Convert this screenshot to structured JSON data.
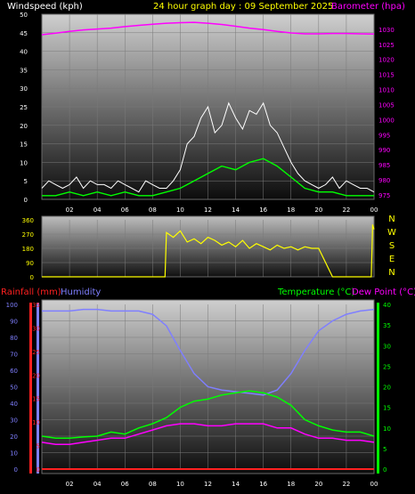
{
  "header": {
    "left": "Windspeed (kph)",
    "center": "24 hour graph day : 09 September 2025",
    "right": "Barometer (hpa)"
  },
  "colors": {
    "background": "#000000",
    "windspeed_label": "#ffffff",
    "title": "#ffff00",
    "barometer": "#ff00ff",
    "wind_gust": "#ffffff",
    "wind_avg": "#00ff00",
    "direction": "#ffff00",
    "rainfall": "#ff2020",
    "humidity": "#7f7fff",
    "temperature": "#00ff00",
    "dewpoint": "#ff00ff"
  },
  "chart_data": [
    {
      "type": "line",
      "name": "wind-barometer",
      "xlabel": "",
      "ylabel": "Windspeed (kph)",
      "ylabel_right": "Barometer (hpa)",
      "x_ticks": [
        "02",
        "04",
        "06",
        "08",
        "10",
        "12",
        "14",
        "16",
        "18",
        "20",
        "22",
        "00"
      ],
      "y_left_ticks": [
        "0",
        "5",
        "10",
        "15",
        "20",
        "25",
        "30",
        "35",
        "40",
        "45",
        "50"
      ],
      "y_right_ticks": [
        "975",
        "980",
        "985",
        "990",
        "995",
        "1000",
        "1005",
        "1010",
        "1015",
        "1020",
        "1025",
        "1030"
      ],
      "ylim_left": [
        0,
        50
      ],
      "ylim_right": [
        973.5,
        1035
      ],
      "x_hours": [
        0,
        24
      ],
      "barometer": {
        "x": [
          0,
          1,
          2,
          3,
          4,
          5,
          6,
          7,
          8,
          9,
          10,
          11,
          12,
          13,
          14,
          15,
          16,
          17,
          18,
          19,
          20,
          21,
          22,
          23,
          24
        ],
        "values": [
          1028.2,
          1028.7,
          1029.3,
          1029.8,
          1030.1,
          1030.4,
          1030.9,
          1031.3,
          1031.7,
          1032.0,
          1032.2,
          1032.3,
          1032.0,
          1031.6,
          1031.0,
          1030.4,
          1029.9,
          1029.3,
          1028.8,
          1028.5,
          1028.5,
          1028.6,
          1028.6,
          1028.5,
          1028.4
        ]
      },
      "wind_gust": {
        "x": [
          0,
          0.5,
          1,
          1.5,
          2,
          2.5,
          3,
          3.5,
          4,
          4.5,
          5,
          5.5,
          6,
          6.5,
          7,
          7.5,
          8,
          8.5,
          9,
          9.5,
          10,
          10.5,
          11,
          11.5,
          12,
          12.5,
          13,
          13.5,
          14,
          14.5,
          15,
          15.5,
          16,
          16.5,
          17,
          17.5,
          18,
          18.5,
          19,
          19.5,
          20,
          20.5,
          21,
          21.5,
          22,
          22.5,
          23,
          23.5,
          24
        ],
        "values": [
          3,
          5,
          4,
          3,
          4,
          6,
          3,
          5,
          4,
          4,
          3,
          5,
          4,
          3,
          2,
          5,
          4,
          3,
          3,
          5,
          8,
          15,
          17,
          22,
          25,
          18,
          20,
          26,
          22,
          19,
          24,
          23,
          26,
          20,
          18,
          14,
          10,
          7,
          5,
          4,
          3,
          4,
          6,
          3,
          5,
          4,
          3,
          3,
          2
        ]
      },
      "wind_avg": {
        "x": [
          0,
          1,
          2,
          3,
          4,
          5,
          6,
          7,
          8,
          9,
          10,
          11,
          12,
          13,
          14,
          15,
          16,
          17,
          18,
          19,
          20,
          21,
          22,
          23,
          24
        ],
        "values": [
          1,
          1,
          2,
          1,
          2,
          1,
          2,
          1,
          1,
          2,
          3,
          5,
          7,
          9,
          8,
          10,
          11,
          9,
          6,
          3,
          2,
          2,
          1,
          1,
          1
        ]
      }
    },
    {
      "type": "line",
      "name": "wind-direction",
      "y_ticks": [
        "0",
        "90",
        "180",
        "270",
        "360"
      ],
      "ylim": [
        0,
        360
      ],
      "direction_labels": [
        "N",
        "W",
        "S",
        "E",
        "N"
      ],
      "x_hours": [
        0,
        24
      ],
      "direction": {
        "x": [
          0,
          8.9,
          9,
          9.5,
          10,
          10.5,
          11,
          11.5,
          12,
          12.5,
          13,
          13.5,
          14,
          14.5,
          15,
          15.5,
          16,
          16.5,
          17,
          17.5,
          18,
          18.5,
          19,
          19.5,
          20,
          21,
          22,
          23.8,
          23.9,
          24
        ],
        "values": [
          0,
          0,
          280,
          250,
          290,
          220,
          240,
          210,
          250,
          230,
          200,
          220,
          190,
          230,
          180,
          210,
          190,
          170,
          200,
          180,
          190,
          170,
          190,
          180,
          180,
          0,
          0,
          0,
          330,
          300
        ]
      }
    },
    {
      "type": "line",
      "name": "temp-humidity-rain",
      "ylabel": "Rainfall (mm)",
      "ylabel_humidity": "Humidity",
      "ylabel_right": "Temperature (°C)",
      "ylabel_dewpoint": "Dew Point (°C)",
      "x_ticks": [
        "02",
        "04",
        "06",
        "08",
        "10",
        "12",
        "14",
        "16",
        "18",
        "20",
        "22",
        "00"
      ],
      "humidity_ticks": [
        "0",
        "10",
        "20",
        "30",
        "40",
        "50",
        "60",
        "70",
        "80",
        "90",
        "100"
      ],
      "rain_ticks": [
        "0",
        "5",
        "10",
        "15",
        "20",
        "25",
        "30",
        "35"
      ],
      "temp_ticks": [
        "0",
        "5",
        "10",
        "15",
        "20",
        "25",
        "30",
        "35",
        "40"
      ],
      "ylim_humidity": [
        0,
        100
      ],
      "ylim_rain": [
        0,
        35
      ],
      "ylim_temp": [
        0,
        40
      ],
      "x_hours": [
        0,
        24
      ],
      "humidity": {
        "x": [
          0,
          1,
          2,
          3,
          4,
          5,
          6,
          7,
          8,
          9,
          10,
          11,
          12,
          13,
          14,
          15,
          16,
          17,
          18,
          19,
          20,
          21,
          22,
          23,
          24
        ],
        "values": [
          96,
          96,
          96,
          97,
          97,
          96,
          96,
          96,
          94,
          87,
          72,
          58,
          50,
          48,
          47,
          46,
          45,
          48,
          58,
          72,
          84,
          90,
          94,
          96,
          97
        ]
      },
      "temperature": {
        "x": [
          0,
          1,
          2,
          3,
          4,
          5,
          6,
          7,
          8,
          9,
          10,
          11,
          12,
          13,
          14,
          15,
          16,
          17,
          18,
          19,
          20,
          21,
          22,
          23,
          24
        ],
        "values": [
          8,
          7.5,
          7.5,
          7.8,
          8,
          9,
          8.5,
          10,
          11,
          12.5,
          15,
          16.5,
          17,
          18,
          18.5,
          19,
          18.5,
          17.5,
          15.5,
          12,
          10.5,
          9.5,
          9,
          9,
          8
        ]
      },
      "dewpoint": {
        "x": [
          0,
          1,
          2,
          3,
          4,
          5,
          6,
          7,
          8,
          9,
          10,
          11,
          12,
          13,
          14,
          15,
          16,
          17,
          18,
          19,
          20,
          21,
          22,
          23,
          24
        ],
        "values": [
          6.5,
          6,
          6,
          6.5,
          7,
          7.5,
          7.5,
          8.5,
          9.5,
          10.5,
          11,
          11,
          10.5,
          10.5,
          11,
          11,
          11,
          10,
          10,
          8.5,
          7.5,
          7.5,
          7,
          7,
          6.5
        ]
      },
      "rainfall": {
        "x": [
          0,
          24
        ],
        "values": [
          0,
          0
        ]
      }
    }
  ]
}
